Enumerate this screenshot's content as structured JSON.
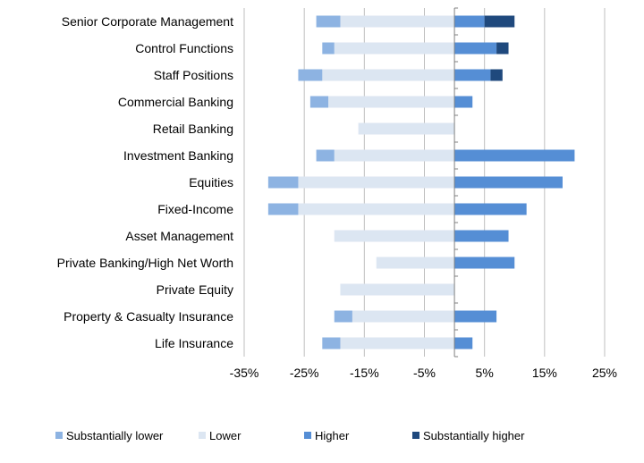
{
  "chart_data": {
    "type": "bar",
    "orientation": "horizontal-diverging-stacked",
    "categories": [
      "Senior Corporate Management",
      "Control Functions",
      "Staff Positions",
      "Commercial Banking",
      "Retail Banking",
      "Investment Banking",
      "Equities",
      "Fixed-Income",
      "Asset Management",
      "Private Banking/High Net Worth",
      "Private Equity",
      "Property & Casualty Insurance",
      "Life Insurance"
    ],
    "series": [
      {
        "name": "Substantially lower",
        "color": "#8db3e2",
        "values": [
          -4,
          -2,
          -4,
          -3,
          0,
          -3,
          -5,
          -5,
          0,
          0,
          0,
          -3,
          -3
        ]
      },
      {
        "name": "Lower",
        "color": "#dce6f2",
        "values": [
          -19,
          -20,
          -22,
          -21,
          -16,
          -20,
          -26,
          -26,
          -20,
          -13,
          -19,
          -17,
          -19
        ]
      },
      {
        "name": "Higher",
        "color": "#558ed5",
        "values": [
          5,
          7,
          6,
          3,
          0,
          20,
          18,
          12,
          9,
          10,
          0,
          7,
          3
        ]
      },
      {
        "name": "Substantially higher",
        "color": "#1f497d",
        "values": [
          5,
          2,
          2,
          0,
          0,
          0,
          0,
          0,
          0,
          0,
          0,
          0,
          0
        ]
      }
    ],
    "xticks": [
      "-35%",
      "-25%",
      "-15%",
      "-5%",
      "5%",
      "15%",
      "25%"
    ],
    "xtick_values": [
      -35,
      -25,
      -15,
      -5,
      5,
      15,
      25
    ],
    "xlim": [
      -35,
      25
    ],
    "grid": true,
    "legend": "bottom",
    "title": "",
    "xlabel": "",
    "ylabel": ""
  }
}
